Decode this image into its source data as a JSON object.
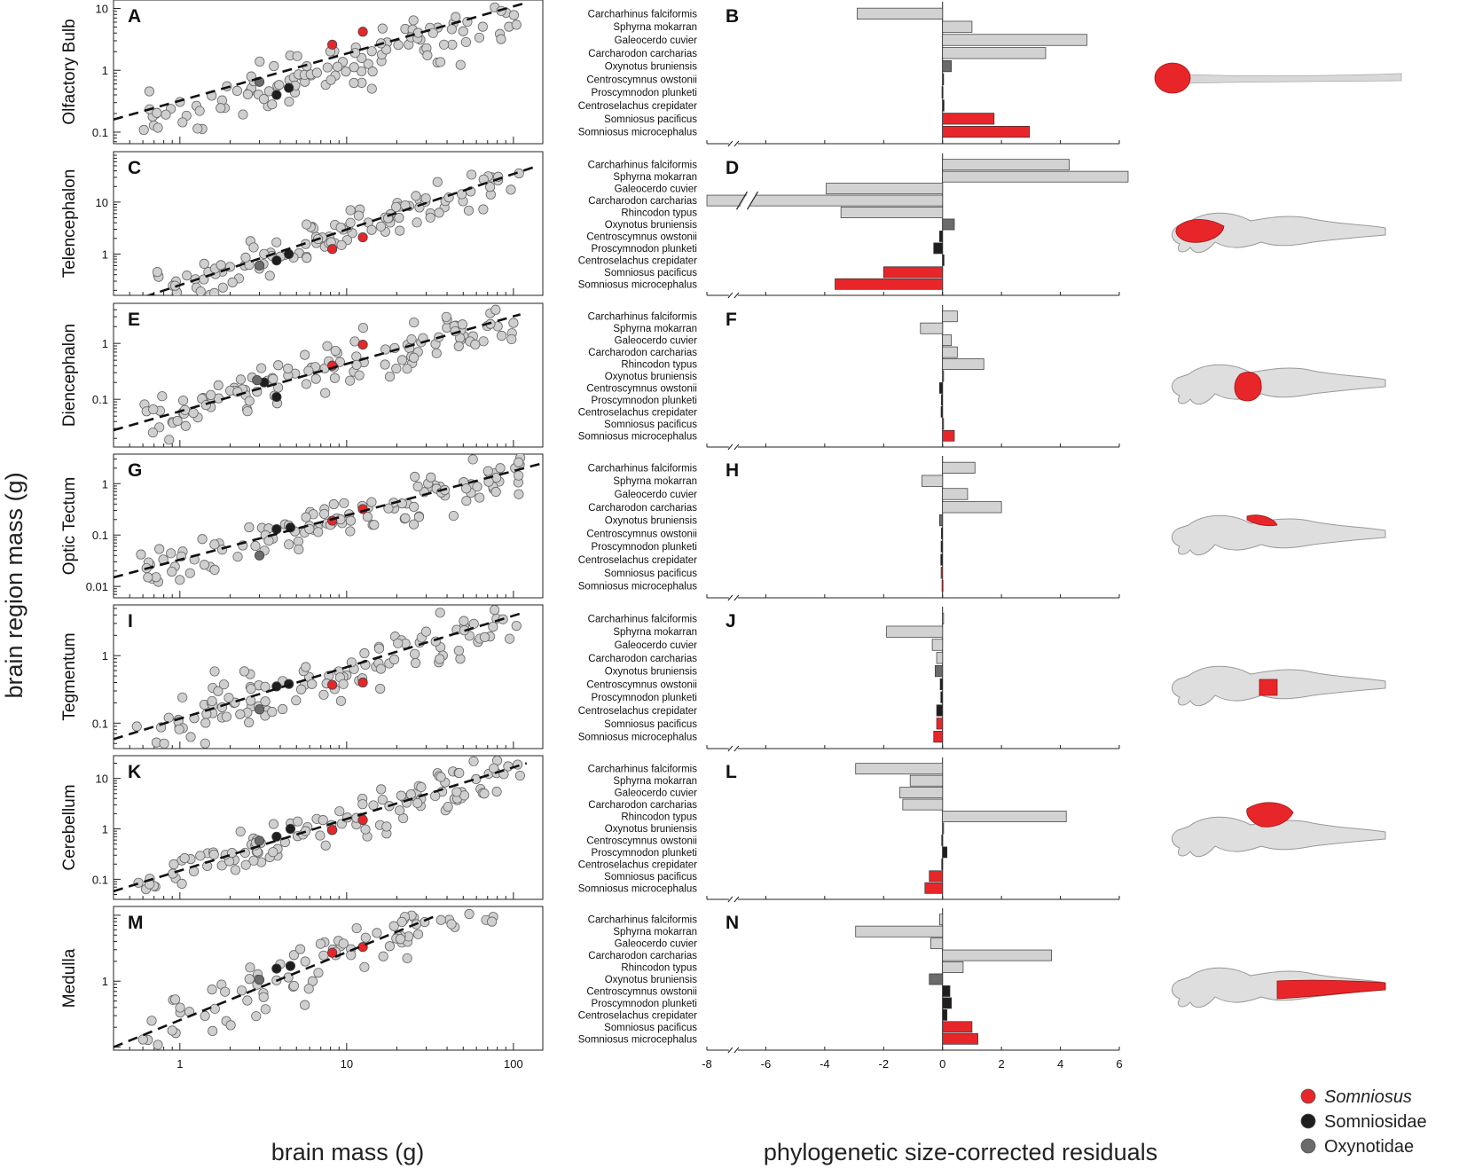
{
  "y_axis_label": "brain region mass (g)",
  "x_axis_label_left": "brain mass (g)",
  "x_axis_label_right": "phylogenetic size-corrected residuals",
  "colors": {
    "somniosus": "#e8262a",
    "somniosidae": "#1e1e1e",
    "oxynotidae": "#6b6b6b",
    "other_point": "#cfcfcf",
    "other_bar": "#d2d2d2"
  },
  "legend": [
    {
      "label": "Somniosus",
      "italic": true,
      "color": "#e8262a"
    },
    {
      "label": "Somniosidae",
      "italic": false,
      "color": "#1e1e1e"
    },
    {
      "label": "Oxynotidae",
      "italic": false,
      "color": "#6b6b6b"
    }
  ],
  "chart_data": [
    {
      "type": "scatter",
      "panel": "A",
      "region": "Olfactory Bulb",
      "xlabel": "brain mass (g)",
      "ylabel": "brain region mass (g)",
      "xscale": "log",
      "yscale": "log",
      "xlim": [
        0.4,
        150
      ],
      "ylim": [
        0.065,
        12
      ],
      "yticks": [
        0.1,
        1,
        10
      ],
      "ytick_labels": [
        "0.1",
        "1",
        "10"
      ],
      "xticks": [
        1,
        10,
        100
      ],
      "xtick_labels": [
        "1",
        "10",
        "100"
      ],
      "fit_line": {
        "x": [
          0.4,
          115
        ],
        "y": [
          0.16,
          12
        ]
      },
      "seed": 11,
      "center_offset": 1.5,
      "highlighted": [
        {
          "x": 8.2,
          "y": 2.6,
          "group": "somniosus"
        },
        {
          "x": 12.5,
          "y": 4.2,
          "group": "somniosus"
        },
        {
          "x": 3.8,
          "y": 0.4,
          "group": "somniosidae"
        },
        {
          "x": 4.5,
          "y": 0.52,
          "group": "somniosidae"
        },
        {
          "x": 3.0,
          "y": 0.65,
          "group": "oxynotidae"
        }
      ]
    },
    {
      "type": "bar",
      "panel": "B",
      "region": "Olfactory Bulb",
      "xlim": [
        -8,
        6
      ],
      "axis_break": true,
      "values": [
        -2.9,
        1.0,
        4.9,
        3.5,
        0.3,
        0.02,
        -0.02,
        0.05,
        1.75,
        2.95
      ],
      "species": [
        "Carcharhinus falciformis",
        "Sphyrna mokarran",
        "Galeocerdo cuvier",
        "Carcharodon carcharias",
        "Oxynotus bruniensis",
        "Centroscymnus owstonii",
        "Proscymnodon plunketi",
        "Centroselachus crepidater",
        "Somniosus pacificus",
        "Somniosus microcephalus"
      ],
      "groups": [
        "other",
        "other",
        "other",
        "other",
        "oxynotidae",
        "somniosidae",
        "somniosidae",
        "somniosidae",
        "somniosus",
        "somniosus"
      ]
    },
    {
      "type": "scatter",
      "panel": "C",
      "region": "Telencephalon",
      "xlabel": "brain mass (g)",
      "ylabel": "brain region mass (g)",
      "xscale": "log",
      "yscale": "log",
      "xlim": [
        0.4,
        150
      ],
      "ylim": [
        0.16,
        80
      ],
      "yticks": [
        1,
        10
      ],
      "ytick_labels": [
        "1",
        "10"
      ],
      "xticks": [
        1,
        10,
        100
      ],
      "xtick_labels": [
        "1",
        "10",
        "100"
      ],
      "fit_line": {
        "x": [
          0.5,
          140
        ],
        "y": [
          0.12,
          50
        ]
      },
      "seed": 23,
      "center_offset": 1.05,
      "highlighted": [
        {
          "x": 8.2,
          "y": 1.25,
          "group": "somniosus"
        },
        {
          "x": 12.5,
          "y": 2.1,
          "group": "somniosus"
        },
        {
          "x": 3.8,
          "y": 0.75,
          "group": "somniosidae"
        },
        {
          "x": 4.5,
          "y": 1.0,
          "group": "somniosidae"
        },
        {
          "x": 3.0,
          "y": 0.6,
          "group": "oxynotidae"
        }
      ]
    },
    {
      "type": "bar",
      "panel": "D",
      "region": "Telencephalon",
      "xlim": [
        -8,
        6
      ],
      "axis_break": true,
      "values": [
        4.3,
        6.3,
        -3.95,
        -10.5,
        -3.45,
        0.4,
        -0.1,
        -0.3,
        0.05,
        -2.0,
        -3.65
      ],
      "species": [
        "Carcharhinus falciformis",
        "Sphyrna mokarran",
        "Galeocerdo cuvier",
        "Carcharodon carcharias",
        "Rhincodon typus",
        "Oxynotus bruniensis",
        "Centroscymnus owstonii",
        "Proscymnodon plunketi",
        "Centroselachus crepidater",
        "Somniosus pacificus",
        "Somniosus microcephalus"
      ],
      "groups": [
        "other",
        "other",
        "other",
        "other",
        "other",
        "oxynotidae",
        "somniosidae",
        "somniosidae",
        "somniosidae",
        "somniosus",
        "somniosus"
      ]
    },
    {
      "type": "scatter",
      "panel": "E",
      "region": "Diencephalon",
      "xlabel": "brain mass (g)",
      "ylabel": "brain region mass (g)",
      "xscale": "log",
      "yscale": "log",
      "xlim": [
        0.4,
        150
      ],
      "ylim": [
        0.014,
        4.5
      ],
      "yticks": [
        0.1,
        1
      ],
      "ytick_labels": [
        "0.1",
        "1"
      ],
      "xticks": [
        1,
        10,
        100
      ],
      "xtick_labels": [
        "1",
        "10",
        "100"
      ],
      "fit_line": {
        "x": [
          0.4,
          110
        ],
        "y": [
          0.028,
          3.3
        ]
      },
      "seed": 37,
      "center_offset": 1.05,
      "highlighted": [
        {
          "x": 8.2,
          "y": 0.4,
          "group": "somniosus"
        },
        {
          "x": 12.5,
          "y": 0.95,
          "group": "somniosus"
        },
        {
          "x": 3.8,
          "y": 0.11,
          "group": "somniosidae"
        },
        {
          "x": 3.2,
          "y": 0.2,
          "group": "somniosidae"
        },
        {
          "x": 2.9,
          "y": 0.22,
          "group": "oxynotidae"
        }
      ]
    },
    {
      "type": "bar",
      "panel": "F",
      "region": "Diencephalon",
      "xlim": [
        -8,
        6
      ],
      "axis_break": true,
      "values": [
        0.5,
        -0.75,
        0.3,
        0.5,
        1.4,
        0.03,
        -0.1,
        -0.04,
        -0.05,
        0.02,
        0.4
      ],
      "species": [
        "Carcharhinus falciformis",
        "Sphyrna mokarran",
        "Galeocerdo cuvier",
        "Carcharodon carcharias",
        "Rhincodon typus",
        "Oxynotus bruniensis",
        "Centroscymnus owstonii",
        "Proscymnodon plunketi",
        "Centroselachus crepidater",
        "Somniosus pacificus",
        "Somniosus microcephalus"
      ],
      "groups": [
        "other",
        "other",
        "other",
        "other",
        "other",
        "oxynotidae",
        "somniosidae",
        "somniosidae",
        "somniosidae",
        "somniosus",
        "somniosus"
      ]
    },
    {
      "type": "scatter",
      "panel": "G",
      "region": "Optic Tectum",
      "xlabel": "brain mass (g)",
      "ylabel": "brain region mass (g)",
      "xscale": "log",
      "yscale": "log",
      "xlim": [
        0.4,
        150
      ],
      "ylim": [
        0.006,
        3.2
      ],
      "yticks": [
        0.01,
        0.1,
        1
      ],
      "ytick_labels": [
        "0.01",
        "0.1",
        "1"
      ],
      "xticks": [
        1,
        10,
        100
      ],
      "xtick_labels": [
        "1",
        "10",
        "100"
      ],
      "fit_line": {
        "x": [
          0.4,
          150
        ],
        "y": [
          0.015,
          2.5
        ]
      },
      "seed": 51,
      "center_offset": 1.05,
      "highlighted": [
        {
          "x": 8.2,
          "y": 0.19,
          "group": "somniosus"
        },
        {
          "x": 12.5,
          "y": 0.32,
          "group": "somniosus"
        },
        {
          "x": 3.8,
          "y": 0.13,
          "group": "somniosidae"
        },
        {
          "x": 4.6,
          "y": 0.14,
          "group": "somniosidae"
        },
        {
          "x": 3.0,
          "y": 0.04,
          "group": "oxynotidae"
        }
      ]
    },
    {
      "type": "bar",
      "panel": "H",
      "region": "Optic Tectum",
      "xlim": [
        -8,
        6
      ],
      "axis_break": true,
      "values": [
        1.1,
        -0.7,
        0.85,
        2.0,
        -0.1,
        -0.04,
        -0.05,
        -0.06,
        -0.05,
        -0.02
      ],
      "species": [
        "Carcharhinus falciformis",
        "Sphyrna mokarran",
        "Galeocerdo cuvier",
        "Carcharodon carcharias",
        "Oxynotus bruniensis",
        "Centroscymnus owstonii",
        "Proscymnodon plunketi",
        "Centroselachus crepidater",
        "Somniosus pacificus",
        "Somniosus microcephalus"
      ],
      "groups": [
        "other",
        "other",
        "other",
        "other",
        "oxynotidae",
        "somniosidae",
        "somniosidae",
        "somniosidae",
        "somniosus",
        "somniosus"
      ]
    },
    {
      "type": "scatter",
      "panel": "I",
      "region": "Tegmentum",
      "xlabel": "brain mass (g)",
      "ylabel": "brain region mass (g)",
      "xscale": "log",
      "yscale": "log",
      "xlim": [
        0.4,
        150
      ],
      "ylim": [
        0.042,
        5
      ],
      "yticks": [
        0.1,
        1
      ],
      "ytick_labels": [
        "0.1",
        "1"
      ],
      "xticks": [
        1,
        10,
        100
      ],
      "xtick_labels": [
        "1",
        "10",
        "100"
      ],
      "fit_line": {
        "x": [
          0.4,
          110
        ],
        "y": [
          0.058,
          4.2
        ]
      },
      "seed": 67,
      "center_offset": 1.05,
      "highlighted": [
        {
          "x": 8.2,
          "y": 0.37,
          "group": "somniosus"
        },
        {
          "x": 12.5,
          "y": 0.4,
          "group": "somniosus"
        },
        {
          "x": 3.8,
          "y": 0.35,
          "group": "somniosidae"
        },
        {
          "x": 4.5,
          "y": 0.38,
          "group": "somniosidae"
        },
        {
          "x": 3.0,
          "y": 0.16,
          "group": "oxynotidae"
        }
      ]
    },
    {
      "type": "bar",
      "panel": "J",
      "region": "Tegmentum",
      "xlim": [
        -8,
        6
      ],
      "axis_break": true,
      "values": [
        0.02,
        -1.9,
        -0.35,
        -0.2,
        -0.25,
        -0.08,
        -0.06,
        -0.2,
        -0.2,
        -0.3
      ],
      "species": [
        "Carcharhinus falciformis",
        "Sphyrna mokarran",
        "Galeocerdo cuvier",
        "Carcharodon carcharias",
        "Oxynotus bruniensis",
        "Centroscymnus owstonii",
        "Proscymnodon plunketi",
        "Centroselachus crepidater",
        "Somniosus pacificus",
        "Somniosus microcephalus"
      ],
      "groups": [
        "other",
        "other",
        "other",
        "other",
        "oxynotidae",
        "somniosidae",
        "somniosidae",
        "somniosidae",
        "somniosus",
        "somniosus"
      ]
    },
    {
      "type": "scatter",
      "panel": "K",
      "region": "Cerebellum",
      "xlabel": "brain mass (g)",
      "ylabel": "brain region mass (g)",
      "xscale": "log",
      "yscale": "log",
      "xlim": [
        0.4,
        150
      ],
      "ylim": [
        0.04,
        24
      ],
      "yticks": [
        0.1,
        1,
        10
      ],
      "ytick_labels": [
        "0.1",
        "1",
        "10"
      ],
      "xticks": [
        1,
        10,
        100
      ],
      "xtick_labels": [
        "1",
        "10",
        "100"
      ],
      "fit_line": {
        "x": [
          0.4,
          120
        ],
        "y": [
          0.058,
          20
        ]
      },
      "seed": 79,
      "center_offset": 1.0,
      "highlighted": [
        {
          "x": 8.2,
          "y": 0.95,
          "group": "somniosus"
        },
        {
          "x": 12.5,
          "y": 1.5,
          "group": "somniosus"
        },
        {
          "x": 3.8,
          "y": 0.7,
          "group": "somniosidae"
        },
        {
          "x": 4.6,
          "y": 1.0,
          "group": "somniosidae"
        },
        {
          "x": 3.0,
          "y": 0.58,
          "group": "oxynotidae"
        }
      ]
    },
    {
      "type": "bar",
      "panel": "L",
      "region": "Cerebellum",
      "xlim": [
        -8,
        6
      ],
      "axis_break": true,
      "values": [
        -2.95,
        -1.1,
        -1.45,
        -1.35,
        4.2,
        0.02,
        -0.03,
        0.15,
        -0.03,
        -0.45,
        -0.6
      ],
      "species": [
        "Carcharhinus falciformis",
        "Sphyrna mokarran",
        "Galeocerdo cuvier",
        "Carcharodon carcharias",
        "Rhincodon typus",
        "Oxynotus bruniensis",
        "Centroscymnus owstonii",
        "Proscymnodon plunketi",
        "Centroselachus crepidater",
        "Somniosus pacificus",
        "Somniosus microcephalus"
      ],
      "groups": [
        "other",
        "other",
        "other",
        "other",
        "other",
        "oxynotidae",
        "somniosidae",
        "somniosidae",
        "somniosidae",
        "somniosus",
        "somniosus"
      ]
    },
    {
      "type": "scatter",
      "panel": "M",
      "region": "Medulla",
      "xlabel": "brain mass (g)",
      "ylabel": "brain region mass (g)",
      "xscale": "log",
      "yscale": "log",
      "xlim": [
        0.4,
        150
      ],
      "ylim": [
        0.09,
        12
      ],
      "yticks": [
        1
      ],
      "ytick_labels": [
        "1"
      ],
      "xticks": [
        1,
        10,
        100
      ],
      "xtick_labels": [
        "1",
        "10",
        "100"
      ],
      "fit_line": {
        "x": [
          0.4,
          35
        ],
        "y": [
          0.1,
          10
        ]
      },
      "seed": 97,
      "center_offset": 1.05,
      "highlighted": [
        {
          "x": 8.2,
          "y": 2.7,
          "group": "somniosus"
        },
        {
          "x": 12.5,
          "y": 3.3,
          "group": "somniosus"
        },
        {
          "x": 3.8,
          "y": 1.55,
          "group": "somniosidae"
        },
        {
          "x": 4.6,
          "y": 1.7,
          "group": "somniosidae"
        },
        {
          "x": 3.0,
          "y": 1.05,
          "group": "oxynotidae"
        }
      ]
    },
    {
      "type": "bar",
      "panel": "N",
      "region": "Medulla",
      "xlim": [
        -8,
        6
      ],
      "axis_break": true,
      "xticks": [
        -8,
        -6,
        -4,
        -2,
        0,
        2,
        4,
        6
      ],
      "xtick_labels": [
        "-8",
        "-6",
        "-4",
        "-2",
        "0",
        "2",
        "4",
        "6"
      ],
      "values": [
        -0.1,
        -2.95,
        -0.4,
        3.7,
        0.7,
        -0.45,
        0.25,
        0.3,
        0.15,
        1.0,
        1.2
      ],
      "species": [
        "Carcharhinus falciformis",
        "Sphyrna mokarran",
        "Galeocerdo cuvier",
        "Carcharodon carcharias",
        "Rhincodon typus",
        "Oxynotus bruniensis",
        "Centroscymnus owstonii",
        "Proscymnodon plunketi",
        "Centroselachus crepidater",
        "Somniosus pacificus",
        "Somniosus microcephalus"
      ],
      "groups": [
        "other",
        "other",
        "other",
        "other",
        "other",
        "oxynotidae",
        "somniosidae",
        "somniosidae",
        "somniosidae",
        "somniosus",
        "somniosus"
      ]
    }
  ]
}
